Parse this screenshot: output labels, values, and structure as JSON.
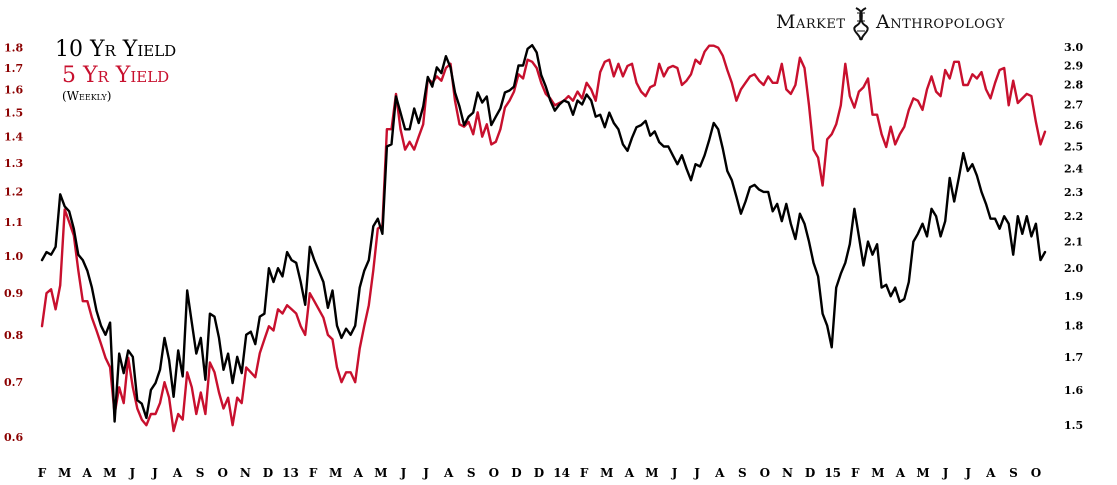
{
  "brand": {
    "text": "Market",
    "text2": "Anthropology",
    "icon": "dna-icon"
  },
  "chart_data": {
    "type": "line",
    "title": "",
    "legend": {
      "placement": "top-left",
      "line1": "10 Yr Yield",
      "line2": "5 Yr Yield",
      "subtitle": "(Weekly)"
    },
    "grid": false,
    "x_axis": {
      "ticks": [
        "F",
        "M",
        "A",
        "M",
        "J",
        "J",
        "A",
        "S",
        "O",
        "N",
        "D",
        "13",
        "F",
        "M",
        "A",
        "M",
        "J",
        "J",
        "A",
        "S",
        "O",
        "D",
        "D",
        "14",
        "F",
        "M",
        "A",
        "M",
        "J",
        "J",
        "A",
        "S",
        "O",
        "N",
        "D",
        "15",
        "F",
        "M",
        "A",
        "M",
        "J",
        "J",
        "A",
        "S",
        "O"
      ]
    },
    "left_axis": {
      "scale": "log",
      "range": [
        0.57,
        1.85
      ],
      "ticks": [
        "0.6",
        "0.7",
        "0.8",
        "0.9",
        "1.0",
        "1.1",
        "1.2",
        "1.3",
        "1.4",
        "1.5",
        "1.6",
        "1.7",
        "1.8"
      ]
    },
    "right_axis": {
      "scale": "log",
      "range": [
        1.42,
        3.05
      ],
      "ticks": [
        "1.5",
        "1.6",
        "1.7",
        "1.8",
        "1.9",
        "2.0",
        "2.1",
        "2.2",
        "2.3",
        "2.4",
        "2.5",
        "2.6",
        "2.7",
        "2.8",
        "2.9",
        "3.0"
      ]
    },
    "colors": {
      "ten_year": "#000000",
      "five_year": "#c8102e"
    },
    "series": [
      {
        "name": "10 Yr Yield",
        "axis": "right",
        "color": "#000000",
        "values": [
          2.03,
          2.06,
          2.05,
          2.08,
          2.29,
          2.24,
          2.22,
          2.15,
          2.05,
          2.03,
          1.99,
          1.93,
          1.85,
          1.8,
          1.77,
          1.81,
          1.51,
          1.71,
          1.65,
          1.72,
          1.7,
          1.57,
          1.56,
          1.52,
          1.6,
          1.62,
          1.66,
          1.76,
          1.69,
          1.58,
          1.72,
          1.64,
          1.92,
          1.81,
          1.71,
          1.76,
          1.63,
          1.84,
          1.83,
          1.76,
          1.66,
          1.71,
          1.62,
          1.7,
          1.65,
          1.77,
          1.78,
          1.74,
          1.83,
          1.84,
          2.0,
          1.95,
          2.0,
          1.97,
          2.06,
          2.03,
          2.02,
          1.95,
          1.87,
          2.08,
          2.03,
          1.99,
          1.95,
          1.86,
          1.92,
          1.8,
          1.76,
          1.79,
          1.77,
          1.8,
          1.93,
          1.99,
          2.03,
          2.16,
          2.19,
          2.13,
          2.5,
          2.51,
          2.74,
          2.66,
          2.58,
          2.58,
          2.68,
          2.61,
          2.69,
          2.84,
          2.79,
          2.89,
          2.86,
          2.95,
          2.89,
          2.76,
          2.69,
          2.6,
          2.64,
          2.66,
          2.76,
          2.71,
          2.74,
          2.6,
          2.64,
          2.68,
          2.76,
          2.77,
          2.79,
          2.9,
          2.9,
          2.99,
          3.01,
          2.97,
          2.85,
          2.79,
          2.72,
          2.67,
          2.7,
          2.72,
          2.71,
          2.65,
          2.72,
          2.7,
          2.75,
          2.72,
          2.64,
          2.65,
          2.59,
          2.66,
          2.61,
          2.58,
          2.51,
          2.48,
          2.54,
          2.59,
          2.6,
          2.62,
          2.55,
          2.57,
          2.52,
          2.5,
          2.5,
          2.46,
          2.42,
          2.46,
          2.4,
          2.35,
          2.42,
          2.41,
          2.46,
          2.53,
          2.61,
          2.58,
          2.49,
          2.39,
          2.35,
          2.28,
          2.21,
          2.26,
          2.32,
          2.33,
          2.31,
          2.3,
          2.3,
          2.22,
          2.25,
          2.18,
          2.25,
          2.17,
          2.11,
          2.21,
          2.17,
          2.1,
          2.02,
          1.97,
          1.84,
          1.8,
          1.73,
          1.93,
          1.98,
          2.02,
          2.09,
          2.23,
          2.12,
          2.01,
          2.1,
          2.05,
          2.09,
          1.93,
          1.94,
          1.9,
          1.93,
          1.88,
          1.89,
          1.95,
          2.1,
          2.13,
          2.17,
          2.12,
          2.23,
          2.2,
          2.12,
          2.18,
          2.36,
          2.26,
          2.36,
          2.47,
          2.39,
          2.42,
          2.37,
          2.3,
          2.25,
          2.19,
          2.19,
          2.15,
          2.2,
          2.17,
          2.05,
          2.2,
          2.13,
          2.2,
          2.12,
          2.17,
          2.03,
          2.06
        ]
      },
      {
        "name": "5 Yr Yield",
        "axis": "left",
        "color": "#c8102e",
        "values": [
          0.82,
          0.9,
          0.91,
          0.86,
          0.92,
          1.14,
          1.1,
          1.06,
          0.96,
          0.88,
          0.88,
          0.84,
          0.81,
          0.78,
          0.75,
          0.73,
          0.64,
          0.69,
          0.66,
          0.75,
          0.69,
          0.65,
          0.63,
          0.62,
          0.64,
          0.64,
          0.66,
          0.7,
          0.67,
          0.61,
          0.64,
          0.63,
          0.72,
          0.69,
          0.64,
          0.68,
          0.64,
          0.74,
          0.72,
          0.68,
          0.65,
          0.67,
          0.62,
          0.67,
          0.66,
          0.73,
          0.72,
          0.71,
          0.76,
          0.79,
          0.82,
          0.81,
          0.86,
          0.85,
          0.87,
          0.86,
          0.85,
          0.82,
          0.8,
          0.9,
          0.88,
          0.86,
          0.84,
          0.8,
          0.79,
          0.73,
          0.7,
          0.72,
          0.72,
          0.7,
          0.77,
          0.82,
          0.87,
          0.96,
          1.08,
          1.09,
          1.43,
          1.43,
          1.58,
          1.43,
          1.35,
          1.38,
          1.35,
          1.4,
          1.45,
          1.65,
          1.63,
          1.66,
          1.64,
          1.7,
          1.72,
          1.55,
          1.45,
          1.44,
          1.46,
          1.41,
          1.5,
          1.4,
          1.45,
          1.37,
          1.38,
          1.43,
          1.52,
          1.55,
          1.59,
          1.67,
          1.65,
          1.74,
          1.73,
          1.7,
          1.63,
          1.58,
          1.56,
          1.53,
          1.54,
          1.55,
          1.57,
          1.55,
          1.59,
          1.56,
          1.63,
          1.6,
          1.55,
          1.68,
          1.73,
          1.74,
          1.66,
          1.72,
          1.66,
          1.71,
          1.72,
          1.63,
          1.59,
          1.57,
          1.61,
          1.62,
          1.72,
          1.66,
          1.7,
          1.71,
          1.7,
          1.62,
          1.64,
          1.67,
          1.74,
          1.72,
          1.78,
          1.81,
          1.81,
          1.8,
          1.76,
          1.69,
          1.63,
          1.55,
          1.6,
          1.63,
          1.66,
          1.67,
          1.64,
          1.62,
          1.66,
          1.63,
          1.63,
          1.72,
          1.6,
          1.58,
          1.62,
          1.75,
          1.7,
          1.53,
          1.35,
          1.32,
          1.22,
          1.39,
          1.41,
          1.45,
          1.53,
          1.72,
          1.57,
          1.52,
          1.59,
          1.61,
          1.65,
          1.49,
          1.49,
          1.41,
          1.36,
          1.44,
          1.37,
          1.41,
          1.44,
          1.51,
          1.56,
          1.55,
          1.51,
          1.6,
          1.66,
          1.59,
          1.57,
          1.69,
          1.65,
          1.73,
          1.73,
          1.62,
          1.62,
          1.67,
          1.65,
          1.68,
          1.6,
          1.56,
          1.63,
          1.69,
          1.7,
          1.53,
          1.64,
          1.54,
          1.56,
          1.58,
          1.57,
          1.46,
          1.37,
          1.42
        ]
      }
    ]
  }
}
